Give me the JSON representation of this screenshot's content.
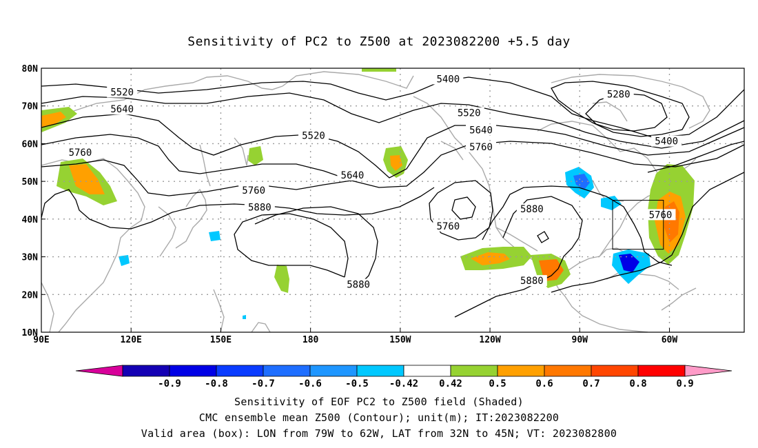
{
  "title": "Sensitivity of PC2 to Z500 at 2023082200 +5.5 day",
  "map": {
    "lon_labels": [
      "90E",
      "120E",
      "150E",
      "180",
      "150W",
      "120W",
      "90W",
      "60W"
    ],
    "lon_values": [
      90,
      120,
      150,
      180,
      210,
      240,
      270,
      300
    ],
    "lat_labels": [
      "80N",
      "70N",
      "60N",
      "50N",
      "40N",
      "30N",
      "20N",
      "10N"
    ],
    "lat_values": [
      80,
      70,
      60,
      50,
      40,
      30,
      20,
      10
    ],
    "extent": {
      "lon_min": 90,
      "lon_max": 325,
      "lat_min": 10,
      "lat_max": 80
    },
    "contour_labels": [
      {
        "text": "5520",
        "lon": 117,
        "lat": 73.5
      },
      {
        "text": "5640",
        "lon": 117,
        "lat": 69
      },
      {
        "text": "5760",
        "lon": 103,
        "lat": 57.5
      },
      {
        "text": "5520",
        "lon": 181,
        "lat": 62
      },
      {
        "text": "5640",
        "lon": 194,
        "lat": 51.5
      },
      {
        "text": "5760",
        "lon": 161,
        "lat": 47.5
      },
      {
        "text": "5880",
        "lon": 163,
        "lat": 43
      },
      {
        "text": "5400",
        "lon": 226,
        "lat": 77
      },
      {
        "text": "5520",
        "lon": 233,
        "lat": 68
      },
      {
        "text": "5640",
        "lon": 237,
        "lat": 63.5
      },
      {
        "text": "5760",
        "lon": 237,
        "lat": 59
      },
      {
        "text": "5280",
        "lon": 283,
        "lat": 73
      },
      {
        "text": "5400",
        "lon": 299,
        "lat": 60.5
      },
      {
        "text": "5880",
        "lon": 254,
        "lat": 42.5
      },
      {
        "text": "5760",
        "lon": 297,
        "lat": 41
      },
      {
        "text": "5760",
        "lon": 226,
        "lat": 38
      },
      {
        "text": "5880",
        "lon": 196,
        "lat": 22.5
      },
      {
        "text": "5880",
        "lon": 254,
        "lat": 23.5
      }
    ],
    "box": {
      "lon_min": 281,
      "lon_max": 298,
      "lat_min": 32,
      "lat_max": 45
    }
  },
  "colorbar": {
    "labels": [
      "-0.9",
      "-0.8",
      "-0.7",
      "-0.6",
      "-0.5",
      "-0.42",
      "0.42",
      "0.5",
      "0.6",
      "0.7",
      "0.8",
      "0.9"
    ],
    "colors": [
      "#d8009a",
      "#1400b4",
      "#0000e6",
      "#0a3cff",
      "#1e6eff",
      "#1e96ff",
      "#00c8ff",
      "#ffffff",
      "#96d232",
      "#ffa000",
      "#ff7800",
      "#ff4600",
      "#ff0000",
      "#ff9bc8"
    ]
  },
  "captions": [
    "Sensitivity of EOF PC2 to Z500 field (Shaded)",
    "CMC ensemble mean Z500 (Contour); unit(m); IT:2023082200",
    "Valid area (box): LON from 79W to 62W, LAT from 32N to 45N; VT: 2023082800"
  ],
  "colors": {
    "land": "#a9a9a9",
    "contour": "#000000",
    "grid": "#999999",
    "green": "#96d232",
    "orange": "#ffa000",
    "darkorange": "#ff7800",
    "cyan": "#00c8ff",
    "blue": "#1e6eff",
    "darkblue": "#0000e6"
  }
}
